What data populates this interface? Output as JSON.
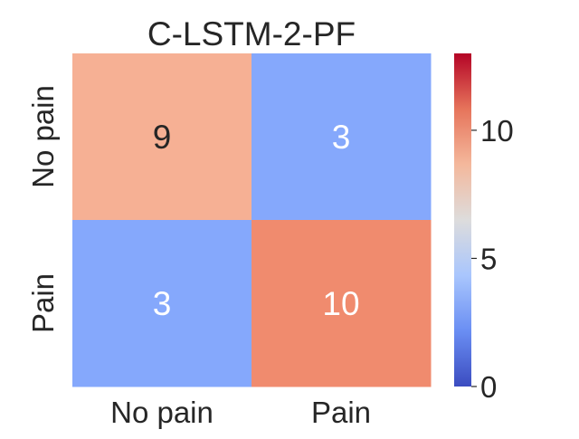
{
  "chart_data": {
    "type": "heatmap",
    "title": "C-LSTM-2-PF",
    "xlabel": "",
    "ylabel": "",
    "x_categories": [
      "No pain",
      "Pain"
    ],
    "y_categories": [
      "No pain",
      "Pain"
    ],
    "values": [
      [
        9,
        3
      ],
      [
        3,
        10
      ]
    ],
    "colorbar": {
      "min": 0,
      "max": 13,
      "ticks": [
        "0",
        "5",
        "10"
      ],
      "colormap": "coolwarm"
    },
    "cell_colors": [
      [
        "#f6b094",
        "#85a8fc"
      ],
      [
        "#85a8fc",
        "#f08b6e"
      ]
    ],
    "annotation_colors": [
      [
        "#262626",
        "#ffffff"
      ],
      [
        "#ffffff",
        "#ffffff"
      ]
    ],
    "colorbar_gradient": [
      "#3b4cc0",
      "#6a8ef3",
      "#a9c6fd",
      "#dddcdc",
      "#f4b89c",
      "#e6745b",
      "#b40426"
    ],
    "grid": false,
    "legend": "colorbar-right"
  }
}
